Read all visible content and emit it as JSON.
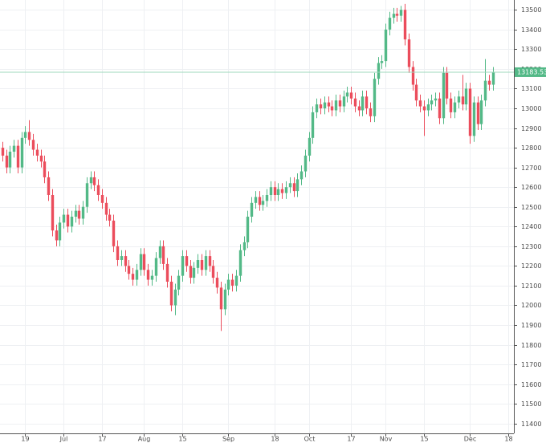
{
  "chart_data": {
    "type": "candlestick",
    "open": [
      12800,
      12760,
      12700,
      12780,
      12810,
      12700,
      12850,
      12880,
      12840,
      12790,
      12760,
      12730,
      12650,
      12560,
      12380,
      12330,
      12420,
      12460,
      12400,
      12450,
      12480,
      12440,
      12500,
      12620,
      12650,
      12610,
      12560,
      12520,
      12460,
      12430,
      12300,
      12230,
      12250,
      12200,
      12160,
      12130,
      12180,
      12260,
      12180,
      12130,
      12150,
      12240,
      12300,
      12210,
      12120,
      12000,
      12080,
      12150,
      12250,
      12200,
      12140,
      12190,
      12230,
      12180,
      12250,
      12200,
      12140,
      12090,
      11980,
      12080,
      12130,
      12100,
      12150,
      12280,
      12320,
      12450,
      12520,
      12550,
      12510,
      12530,
      12560,
      12600,
      12560,
      12590,
      12570,
      12600,
      12620,
      12580,
      12640,
      12680,
      12760,
      12850,
      12980,
      13020,
      13000,
      13030,
      13010,
      12990,
      13040,
      13010,
      13060,
      13080,
      13050,
      13010,
      12990,
      13060,
      13000,
      12960,
      13150,
      13230,
      13240,
      13400,
      13460,
      13480,
      13470,
      13500,
      13350,
      13210,
      13120,
      13040,
      13010,
      12990,
      13020,
      13040,
      13050,
      12950,
      13180,
      13050,
      12980,
      13030,
      13060,
      13020,
      13100,
      12860,
      13030,
      12920,
      13040,
      13140,
      13120
    ],
    "high": [
      12830,
      12790,
      12810,
      12840,
      12840,
      12880,
      12910,
      12940,
      12870,
      12820,
      12790,
      12760,
      12680,
      12590,
      12410,
      12450,
      12490,
      12490,
      12480,
      12510,
      12510,
      12530,
      12650,
      12680,
      12680,
      12640,
      12590,
      12550,
      12490,
      12460,
      12330,
      12280,
      12280,
      12230,
      12190,
      12210,
      12290,
      12290,
      12210,
      12180,
      12270,
      12330,
      12330,
      12240,
      12150,
      12110,
      12180,
      12280,
      12280,
      12230,
      12220,
      12260,
      12260,
      12280,
      12280,
      12230,
      12170,
      12120,
      12110,
      12160,
      12160,
      12180,
      12310,
      12350,
      12480,
      12550,
      12580,
      12580,
      12560,
      12590,
      12630,
      12630,
      12620,
      12620,
      12630,
      12650,
      12650,
      12670,
      12710,
      12790,
      12880,
      13010,
      13050,
      13050,
      13060,
      13060,
      13040,
      13070,
      13070,
      13090,
      13110,
      13110,
      13080,
      13040,
      13090,
      13090,
      13030,
      13180,
      13260,
      13270,
      13430,
      13490,
      13510,
      13510,
      13520,
      13530,
      13380,
      13240,
      13150,
      13070,
      13040,
      13050,
      13070,
      13080,
      13080,
      13210,
      13210,
      13080,
      13060,
      13090,
      13170,
      13130,
      13130,
      13060,
      13060,
      13070,
      13250,
      13170,
      13210
    ],
    "low": [
      12730,
      12670,
      12670,
      12750,
      12670,
      12670,
      12820,
      12810,
      12760,
      12730,
      12700,
      12620,
      12530,
      12350,
      12300,
      12300,
      12390,
      12370,
      12370,
      12420,
      12410,
      12410,
      12470,
      12590,
      12580,
      12530,
      12490,
      12430,
      12400,
      12270,
      12200,
      12200,
      12170,
      12130,
      12100,
      12100,
      12150,
      12150,
      12100,
      12100,
      12120,
      12210,
      12180,
      12090,
      11970,
      11950,
      12050,
      12120,
      12170,
      12110,
      12110,
      12160,
      12150,
      12150,
      12170,
      12110,
      12060,
      11870,
      11950,
      12050,
      12070,
      12070,
      12120,
      12250,
      12290,
      12420,
      12490,
      12480,
      12480,
      12500,
      12530,
      12530,
      12530,
      12540,
      12540,
      12570,
      12550,
      12550,
      12610,
      12650,
      12730,
      12820,
      12950,
      12970,
      12970,
      12980,
      12960,
      12960,
      12980,
      12980,
      13030,
      13020,
      12980,
      12960,
      12960,
      12970,
      12930,
      12930,
      13120,
      13200,
      13210,
      13370,
      13430,
      13440,
      13440,
      13320,
      13180,
      13090,
      13010,
      12980,
      12860,
      12960,
      12990,
      13010,
      12920,
      12920,
      13020,
      12950,
      12950,
      13000,
      12990,
      12990,
      12820,
      12830,
      12890,
      12890,
      13010,
      13090,
      13090
    ],
    "close": [
      12760,
      12700,
      12780,
      12810,
      12700,
      12850,
      12880,
      12840,
      12790,
      12760,
      12730,
      12650,
      12560,
      12380,
      12330,
      12420,
      12460,
      12400,
      12450,
      12480,
      12440,
      12500,
      12620,
      12650,
      12610,
      12560,
      12520,
      12460,
      12430,
      12300,
      12230,
      12250,
      12200,
      12160,
      12130,
      12180,
      12260,
      12180,
      12130,
      12150,
      12240,
      12300,
      12210,
      12120,
      12000,
      12080,
      12150,
      12250,
      12200,
      12140,
      12190,
      12230,
      12180,
      12250,
      12200,
      12140,
      12090,
      11980,
      12080,
      12130,
      12100,
      12150,
      12280,
      12320,
      12450,
      12520,
      12550,
      12510,
      12530,
      12560,
      12600,
      12560,
      12590,
      12570,
      12600,
      12620,
      12580,
      12640,
      12680,
      12760,
      12850,
      12980,
      13020,
      13000,
      13030,
      13010,
      12990,
      13040,
      13010,
      13060,
      13080,
      13050,
      13010,
      12990,
      13060,
      13000,
      12960,
      13150,
      13230,
      13240,
      13400,
      13460,
      13480,
      13470,
      13500,
      13350,
      13210,
      13120,
      13040,
      13010,
      12990,
      13020,
      13040,
      13050,
      12950,
      13180,
      13050,
      12980,
      13030,
      13060,
      13020,
      13100,
      12860,
      13030,
      12920,
      13040,
      13140,
      13120,
      13183.53
    ],
    "up_color": "#53b987",
    "down_color": "#eb4d5c",
    "last_line_color": "#9fd8bd",
    "xlim": [
      -0.6,
      133.5
    ],
    "xticks": [
      {
        "value": 6,
        "label": "19"
      },
      {
        "value": 16,
        "label": "Jul"
      },
      {
        "value": 26,
        "label": "17"
      },
      {
        "value": 37,
        "label": "Aug"
      },
      {
        "value": 47,
        "label": "15"
      },
      {
        "value": 59,
        "label": "Sep"
      },
      {
        "value": 71,
        "label": "18"
      },
      {
        "value": 80,
        "label": "Oct"
      },
      {
        "value": 91,
        "label": "17"
      },
      {
        "value": 100,
        "label": "Nov"
      },
      {
        "value": 110,
        "label": "15"
      },
      {
        "value": 122,
        "label": "Dec"
      },
      {
        "value": 132,
        "label": "18"
      }
    ],
    "ylim": [
      11350,
      13550
    ],
    "yticks": [
      11400,
      11500,
      11600,
      11700,
      11800,
      11900,
      12000,
      12100,
      12200,
      12300,
      12400,
      12500,
      12600,
      12700,
      12800,
      12900,
      13000,
      13100,
      13200,
      13300,
      13400,
      13500
    ],
    "grid": true
  }
}
